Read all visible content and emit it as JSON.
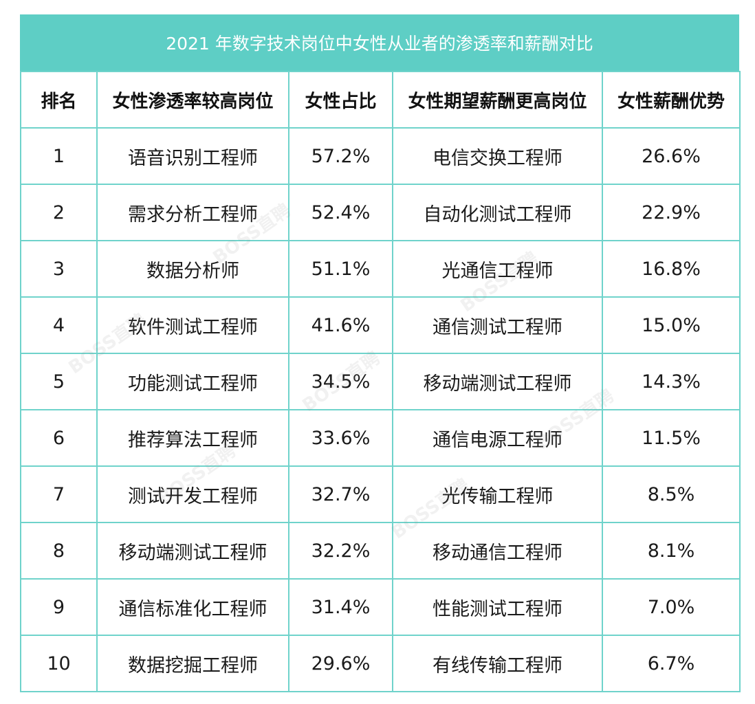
{
  "title": "2021 年数字技术岗位中女性从业者的渗透率和薪酬对比",
  "headers": [
    "排名",
    "女性渗透率较高岗位",
    "女性占比",
    "女性期望薪酬更高岗位",
    "女性薪酬优势"
  ],
  "watermark_text": "BOSS直聘",
  "colors": {
    "header_bg": "#5ecec5",
    "border": "#6fd3cb"
  },
  "chart_data": {
    "type": "table",
    "title": "2021 年数字技术岗位中女性从业者的渗透率和薪酬对比",
    "columns": [
      "排名",
      "女性渗透率较高岗位",
      "女性占比",
      "女性期望薪酬更高岗位",
      "女性薪酬优势"
    ],
    "rows": [
      [
        "1",
        "语音识别工程师",
        "57.2%",
        "电信交换工程师",
        "26.6%"
      ],
      [
        "2",
        "需求分析工程师",
        "52.4%",
        "自动化测试工程师",
        "22.9%"
      ],
      [
        "3",
        "数据分析师",
        "51.1%",
        "光通信工程师",
        "16.8%"
      ],
      [
        "4",
        "软件测试工程师",
        "41.6%",
        "通信测试工程师",
        "15.0%"
      ],
      [
        "5",
        "功能测试工程师",
        "34.5%",
        "移动端测试工程师",
        "14.3%"
      ],
      [
        "6",
        "推荐算法工程师",
        "33.6%",
        "通信电源工程师",
        "11.5%"
      ],
      [
        "7",
        "测试开发工程师",
        "32.7%",
        "光传输工程师",
        "8.5%"
      ],
      [
        "8",
        "移动端测试工程师",
        "32.2%",
        "移动通信工程师",
        "8.1%"
      ],
      [
        "9",
        "通信标准化工程师",
        "31.4%",
        "性能测试工程师",
        "7.0%"
      ],
      [
        "10",
        "数据挖掘工程师",
        "29.6%",
        "有线传输工程师",
        "6.7%"
      ]
    ]
  }
}
